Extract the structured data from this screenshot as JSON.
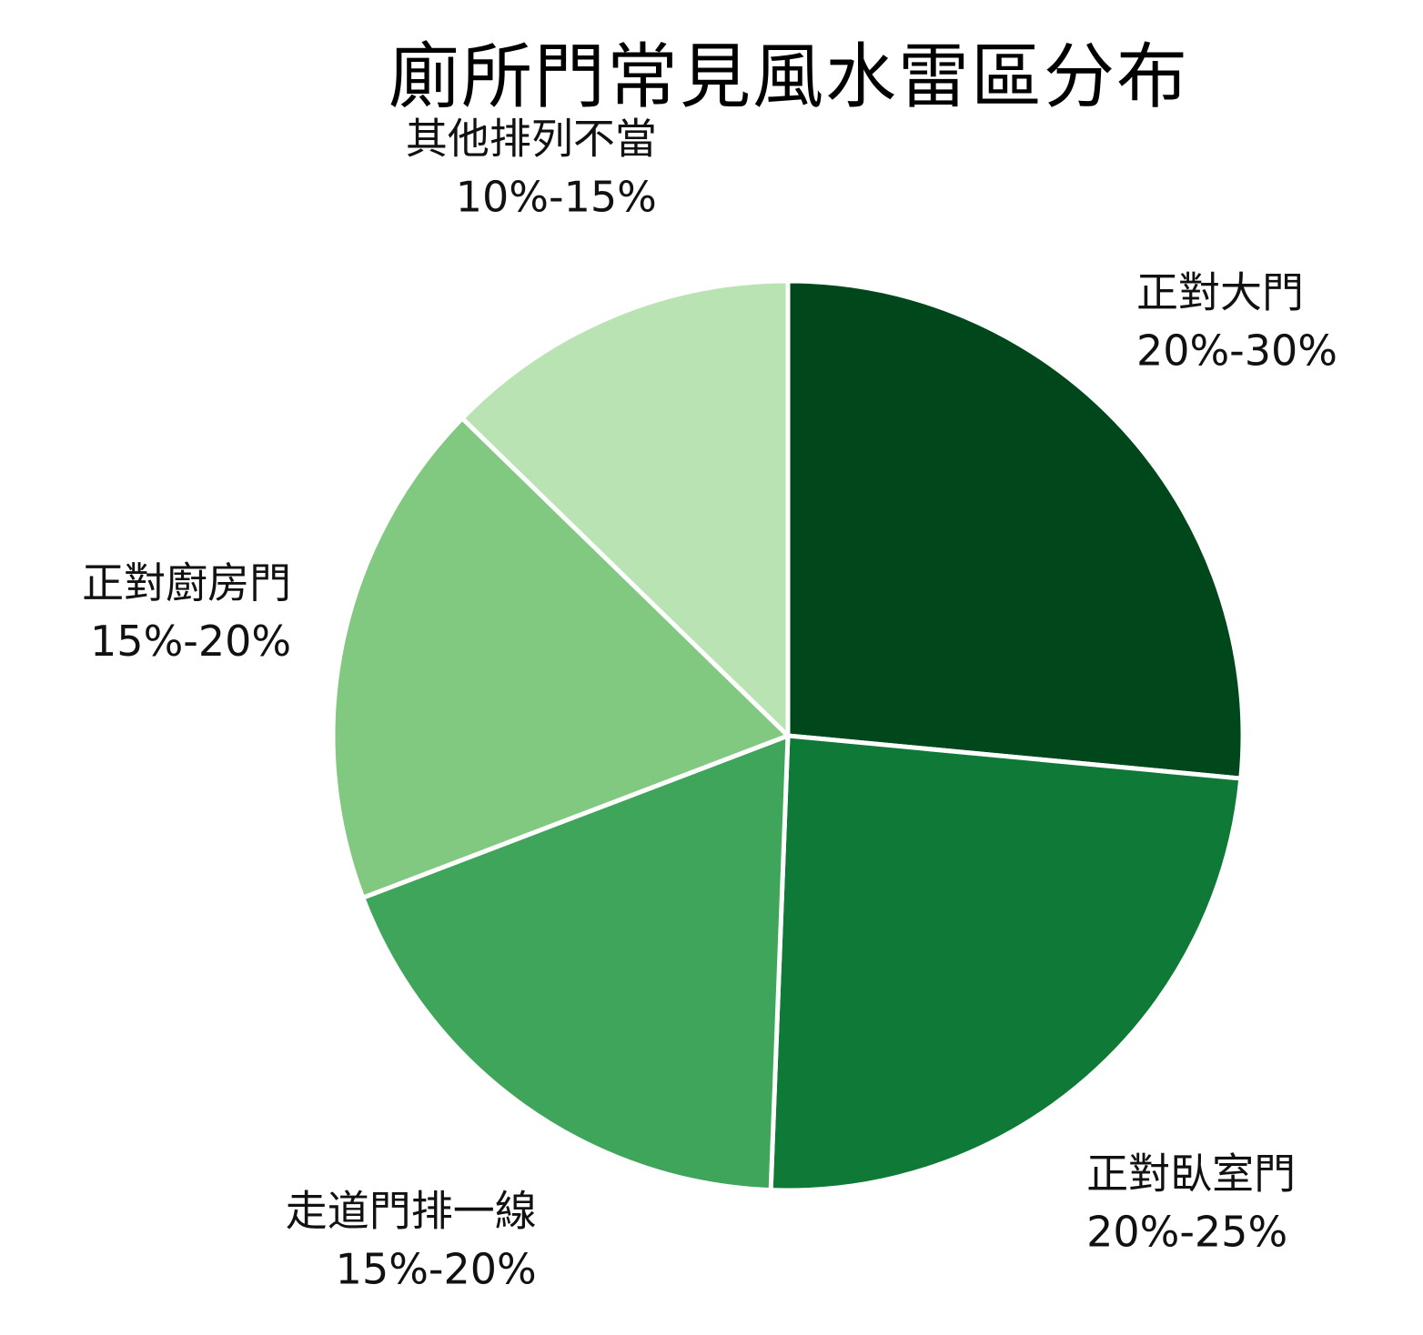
{
  "chart_data": {
    "type": "pie",
    "title": "廁所門常見風水雷區分布",
    "start_angle_deg": 90,
    "direction": "clockwise",
    "slices": [
      {
        "label": "正對大門",
        "range": "20%-30%",
        "value": 26.5,
        "color": "#00471b"
      },
      {
        "label": "正對臥室門",
        "range": "20%-25%",
        "value": 24.1,
        "color": "#0f7a38"
      },
      {
        "label": "走道門排一線",
        "range": "15%-20%",
        "value": 18.6,
        "color": "#3ea55b"
      },
      {
        "label": "正對廚房門",
        "range": "15%-20%",
        "value": 18.1,
        "color": "#81c880"
      },
      {
        "label": "其他排列不當",
        "range": "10%-15%",
        "value": 12.7,
        "color": "#b9e3b3"
      }
    ]
  }
}
